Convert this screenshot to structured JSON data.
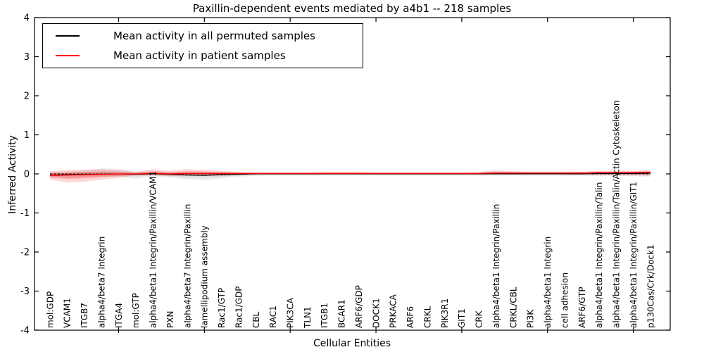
{
  "title": "Paxillin-dependent events mediated by a4b1 -- 218 samples",
  "legend": {
    "items": [
      {
        "label": "Mean activity in all permuted samples",
        "color": "#000000"
      },
      {
        "label": "Mean activity in patient samples",
        "color": "#ff0000"
      }
    ],
    "position": "upper left"
  },
  "chart_data": {
    "type": "line",
    "title": "Paxillin-dependent events mediated by a4b1 -- 218 samples",
    "xlabel": "Cellular Entities",
    "ylabel": "Inferred Activity",
    "ylim": [
      -4,
      4
    ],
    "yticks": [
      4,
      3,
      2,
      1,
      0,
      -1,
      -2,
      -3,
      -4
    ],
    "grid": false,
    "zero_line": {
      "style": "dashed",
      "color": "#000000",
      "y": 0
    },
    "categories": [
      "mol:GDP",
      "VCAM1",
      "ITGB7",
      "alpha4/beta7 Integrin",
      "ITGA4",
      "mol:GTP",
      "alpha4/beta1 Integrin/Paxillin/VCAM1",
      "PXN",
      "alpha4/beta7 Integrin/Paxillin",
      "lamellipodium assembly",
      "Rac1/GTP",
      "Rac1/GDP",
      "CBL",
      "RAC1",
      "PIK3CA",
      "TLN1",
      "ITGB1",
      "BCAR1",
      "ARF6/GDP",
      "DOCK1",
      "PRKACA",
      "ARF6",
      "CRKL",
      "PIK3R1",
      "GIT1",
      "CRK",
      "alpha4/beta1 Integrin/Paxillin",
      "CRKL/CBL",
      "PI3K",
      "alpha4/beta1 Integrin",
      "cell adhesion",
      "ARF6/GTP",
      "alpha4/beta1 Integrin/Paxillin/Talin",
      "alpha4/beta1 Integrin/Paxillin/Talin/Actin Cytoskeleton",
      "alpha4/beta1 Integrin/Paxillin/GIT1",
      "p130Cas/Crk/Dock1"
    ],
    "series": [
      {
        "name": "Mean activity in all permuted samples",
        "color": "#000000",
        "band_fill": "#999999",
        "values": [
          -0.03,
          -0.02,
          -0.01,
          -0.01,
          0.0,
          -0.01,
          0.0,
          -0.01,
          -0.03,
          -0.04,
          -0.02,
          -0.01,
          0.0,
          0.0,
          0.0,
          0.0,
          0.0,
          0.0,
          0.0,
          0.0,
          0.0,
          0.0,
          0.0,
          0.0,
          0.0,
          0.0,
          0.0,
          0.0,
          0.0,
          0.0,
          0.0,
          0.0,
          0.01,
          0.01,
          0.01,
          0.02
        ],
        "band_lower": [
          -0.08,
          -0.08,
          -0.07,
          -0.06,
          -0.08,
          -0.12,
          -0.06,
          -0.09,
          -0.13,
          -0.16,
          -0.11,
          -0.07,
          -0.05,
          -0.04,
          -0.04,
          -0.04,
          -0.04,
          -0.04,
          -0.04,
          -0.04,
          -0.04,
          -0.04,
          -0.04,
          -0.04,
          -0.04,
          -0.04,
          -0.04,
          -0.04,
          -0.04,
          -0.04,
          -0.04,
          -0.04,
          -0.05,
          -0.05,
          -0.06,
          -0.07
        ],
        "band_upper": [
          0.05,
          0.06,
          0.08,
          0.14,
          0.13,
          0.06,
          0.06,
          0.04,
          0.04,
          0.04,
          0.05,
          0.04,
          0.03,
          0.03,
          0.03,
          0.03,
          0.03,
          0.03,
          0.03,
          0.03,
          0.03,
          0.03,
          0.03,
          0.03,
          0.03,
          0.03,
          0.03,
          0.03,
          0.03,
          0.03,
          0.03,
          0.04,
          0.05,
          0.05,
          0.05,
          0.06
        ]
      },
      {
        "name": "Mean activity in patient samples",
        "color": "#ff0000",
        "band_fill": "#ff0000",
        "values": [
          -0.04,
          -0.03,
          -0.02,
          -0.01,
          0.0,
          0.0,
          0.01,
          0.0,
          0.01,
          0.01,
          0.01,
          0.01,
          0.01,
          0.01,
          0.01,
          0.01,
          0.01,
          0.01,
          0.01,
          0.01,
          0.01,
          0.01,
          0.01,
          0.01,
          0.01,
          0.01,
          0.02,
          0.02,
          0.02,
          0.02,
          0.02,
          0.02,
          0.03,
          0.03,
          0.04,
          0.04
        ],
        "band_lower": [
          -0.15,
          -0.22,
          -0.2,
          -0.15,
          -0.1,
          -0.04,
          -0.04,
          -0.06,
          -0.05,
          -0.05,
          -0.05,
          -0.03,
          -0.02,
          -0.02,
          -0.02,
          -0.02,
          -0.02,
          -0.02,
          -0.02,
          -0.02,
          -0.02,
          -0.02,
          -0.02,
          -0.02,
          -0.02,
          -0.02,
          -0.02,
          -0.02,
          -0.02,
          -0.02,
          -0.03,
          -0.03,
          -0.03,
          -0.04,
          -0.04,
          -0.05
        ],
        "band_upper": [
          0.07,
          0.1,
          0.11,
          0.12,
          0.09,
          0.05,
          0.12,
          0.08,
          0.12,
          0.1,
          0.08,
          0.05,
          0.04,
          0.04,
          0.04,
          0.04,
          0.05,
          0.05,
          0.05,
          0.04,
          0.04,
          0.04,
          0.04,
          0.04,
          0.04,
          0.05,
          0.09,
          0.07,
          0.06,
          0.06,
          0.06,
          0.06,
          0.08,
          0.08,
          0.08,
          0.09
        ]
      }
    ],
    "x_major_tick_indices": [
      4,
      9,
      14,
      19,
      24,
      29,
      34
    ]
  }
}
